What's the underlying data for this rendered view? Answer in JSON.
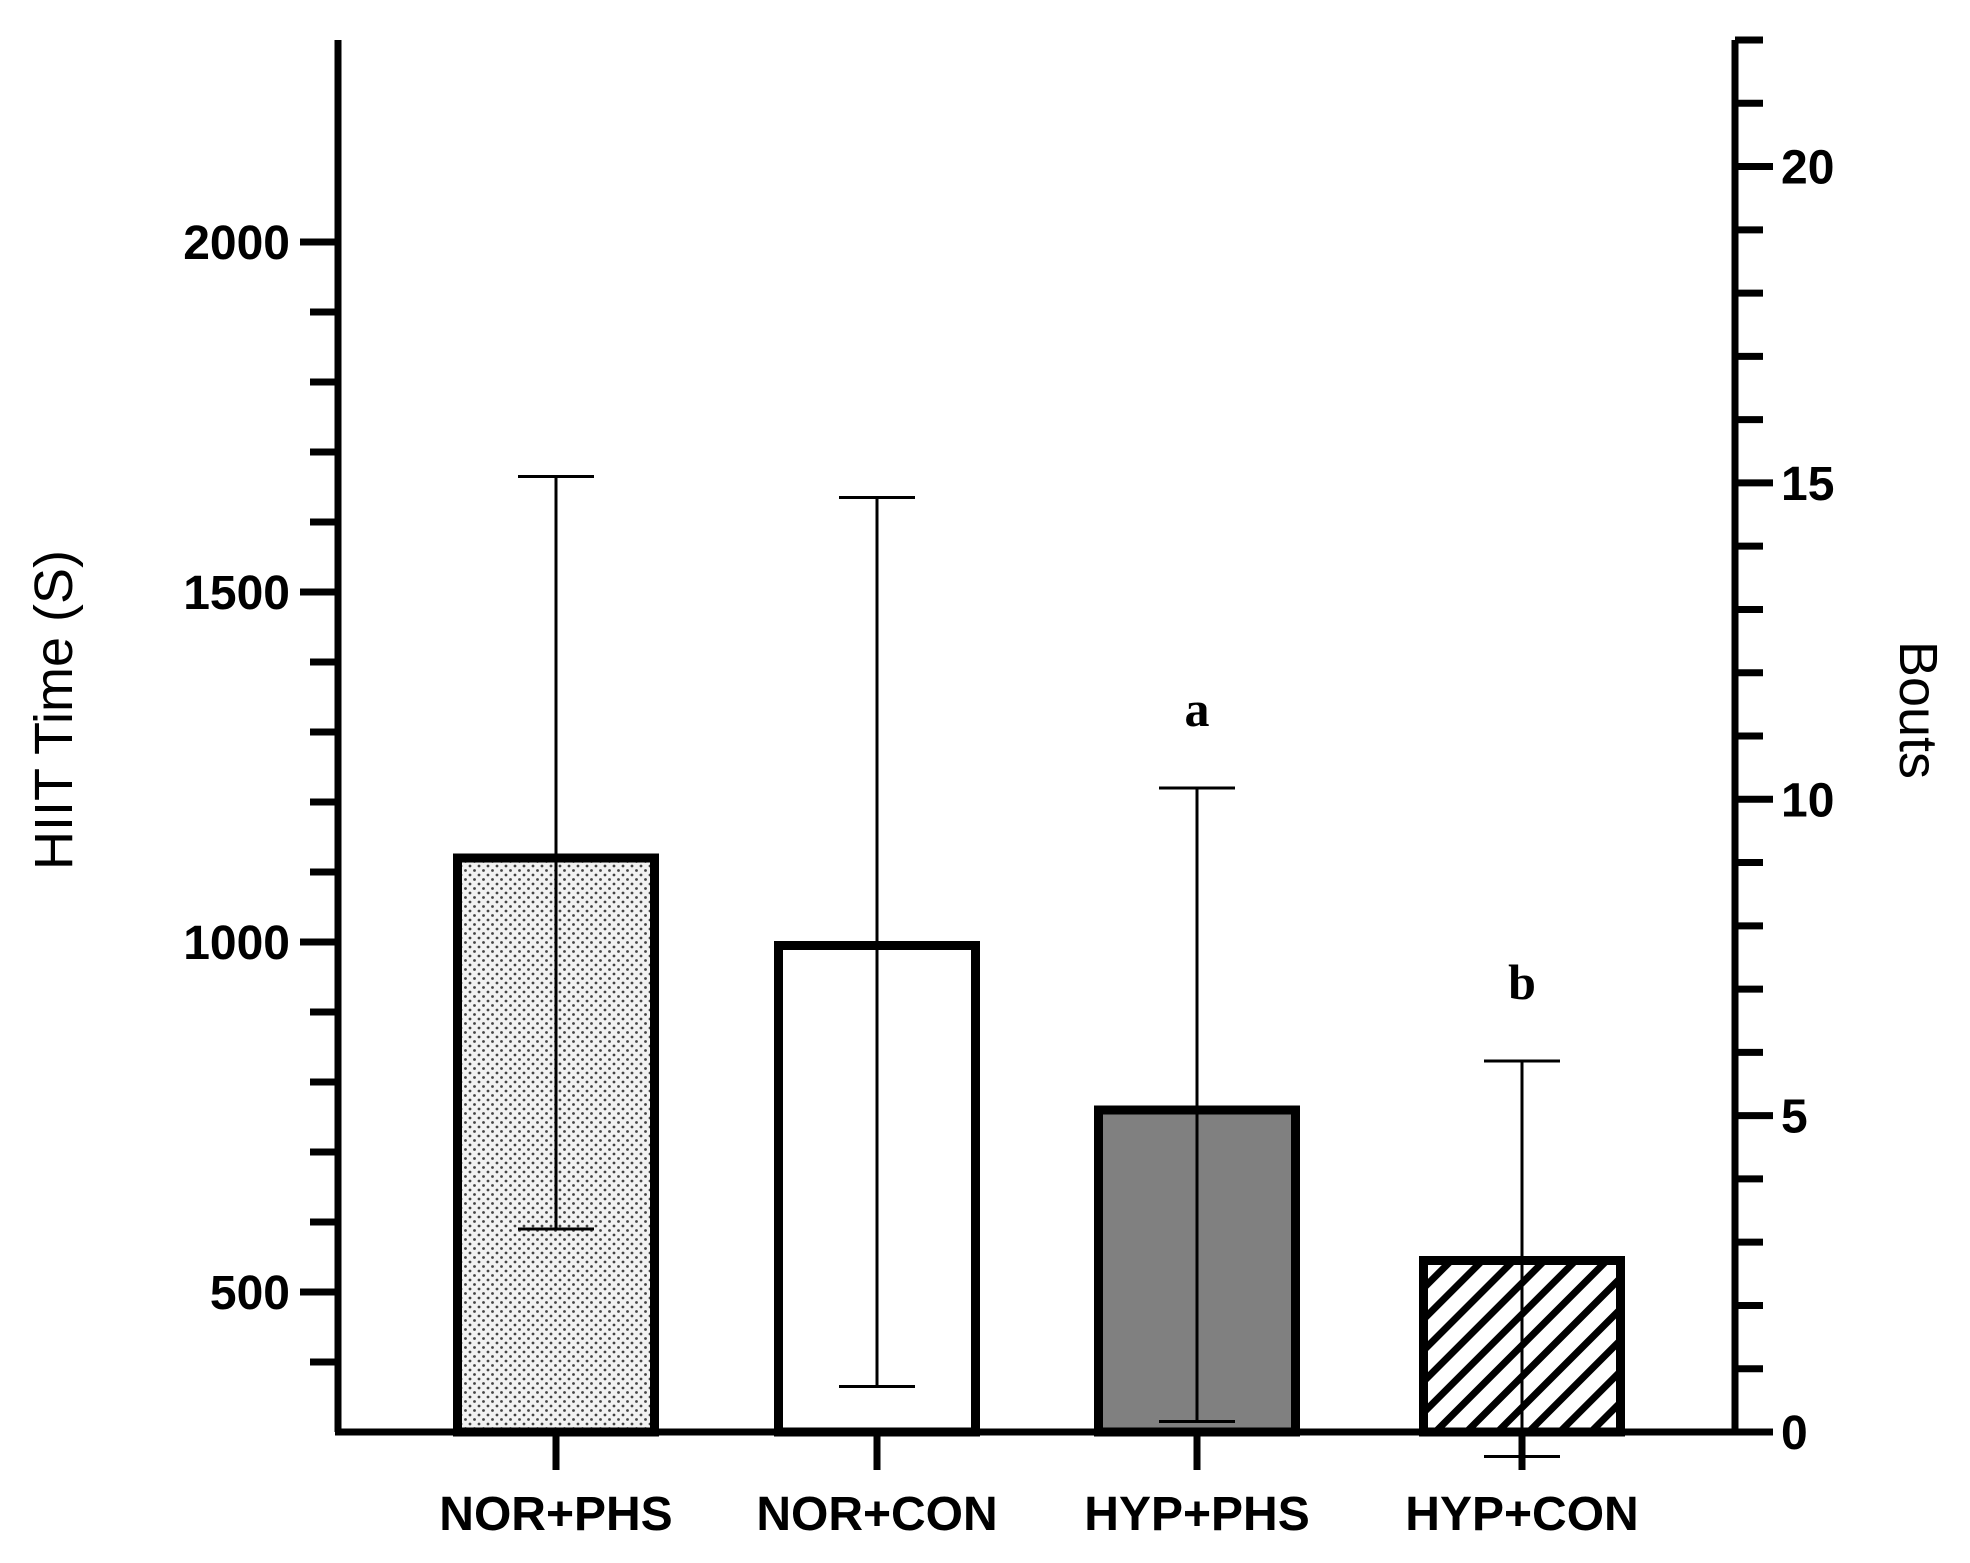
{
  "chart_data": {
    "type": "bar",
    "categories": [
      "NOR+PHS",
      "NOR+CON",
      "HYP+PHS",
      "HYP+CON"
    ],
    "values": [
      1120,
      995,
      760,
      545
    ],
    "errors": [
      [
        590,
        1665
      ],
      [
        365,
        1635
      ],
      [
        315,
        1220
      ],
      [
        265,
        830
      ]
    ],
    "fills": [
      "dots",
      "white",
      "gray",
      "hatch"
    ],
    "annotations": [
      "",
      "",
      "a",
      "b"
    ],
    "ylabel": "HIIT Time  (S)",
    "ylabel_right": "Bouts",
    "ylim": [
      0,
      2000
    ],
    "y_ticks": [
      500,
      1000,
      1500,
      2000
    ],
    "y_minor_step": 100,
    "y2lim": [
      0,
      22
    ],
    "y2_ticks": [
      0,
      5,
      10,
      15,
      20
    ],
    "y2_minor_step": 1,
    "colors": {
      "gray": "#808080",
      "stroke": "#000000",
      "background": "#ffffff"
    }
  }
}
